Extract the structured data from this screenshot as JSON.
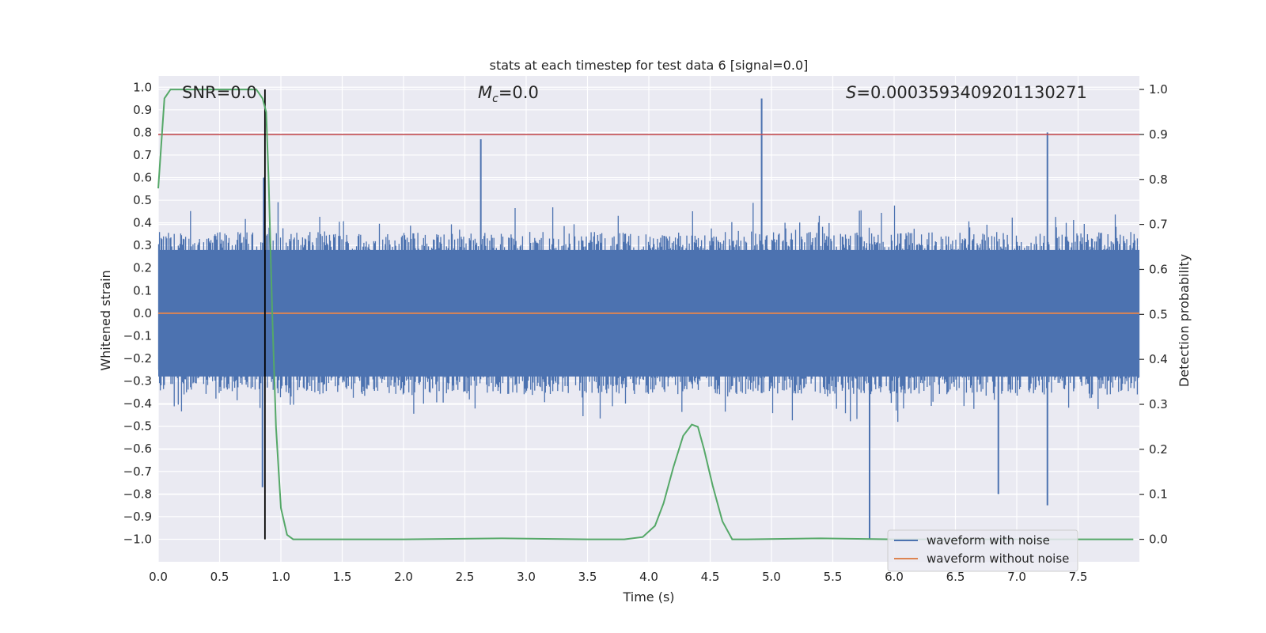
{
  "chart_data": {
    "type": "line",
    "title": "stats at each timestep for test data 6 [signal=0.0]",
    "xlabel": "Time (s)",
    "ylabel": "Whitened strain",
    "ylabel_right": "Detection probability",
    "xlim": [
      0.0,
      8.0
    ],
    "ylim": [
      -1.1,
      1.05
    ],
    "ylim_right": [
      -0.05,
      1.03
    ],
    "grid": true,
    "legend_position": "lower-right",
    "x_ticks": [
      "0.0",
      "0.5",
      "1.0",
      "1.5",
      "2.0",
      "2.5",
      "3.0",
      "3.5",
      "4.0",
      "4.5",
      "5.0",
      "5.5",
      "6.0",
      "6.5",
      "7.0",
      "7.5"
    ],
    "y_ticks": [
      "1.0",
      "0.9",
      "0.8",
      "0.7",
      "0.6",
      "0.5",
      "0.4",
      "0.3",
      "0.2",
      "0.1",
      "0.0",
      "-0.1",
      "-0.2",
      "-0.3",
      "-0.4",
      "-0.5",
      "-0.6",
      "-0.7",
      "-0.8",
      "-0.9",
      "-1.0"
    ],
    "y_right_ticks": [
      "1.0",
      "0.9",
      "0.8",
      "0.7",
      "0.6",
      "0.5",
      "0.4",
      "0.3",
      "0.2",
      "0.1",
      "0.0"
    ],
    "annotations": {
      "snr": "SNR=0.0",
      "mc_symbol": "M",
      "mc_sub": "c",
      "mc_value": "=0.0",
      "s_symbol": "S",
      "s_value": "=0.0003593409201130271"
    },
    "threshold": 0.9,
    "marker_x": 0.87,
    "series": [
      {
        "name": "waveform with noise",
        "color": "#4c72b0",
        "axis": "left",
        "envelope_typical": [
          -0.45,
          0.45
        ],
        "peaks": [
          [
            0.85,
            -0.77
          ],
          [
            0.86,
            0.6
          ],
          [
            2.63,
            0.77
          ],
          [
            4.92,
            0.95
          ],
          [
            5.8,
            -1.0
          ],
          [
            6.85,
            -0.8
          ],
          [
            7.25,
            0.8
          ],
          [
            7.25,
            -0.85
          ]
        ]
      },
      {
        "name": "waveform without noise",
        "color": "#dd8452",
        "axis": "left",
        "values_constant": 0.0
      },
      {
        "name": "",
        "color": "#55a868",
        "axis": "right",
        "x": [
          0.0,
          0.05,
          0.1,
          0.2,
          0.5,
          0.8,
          0.85,
          0.88,
          0.9,
          0.93,
          0.96,
          1.0,
          1.05,
          1.1,
          1.2,
          2.0,
          2.8,
          3.5,
          3.8,
          3.95,
          4.05,
          4.12,
          4.2,
          4.28,
          4.35,
          4.4,
          4.45,
          4.52,
          4.6,
          4.68,
          4.8,
          5.4,
          6.0,
          7.0,
          7.95
        ],
        "values": [
          0.78,
          0.98,
          1.0,
          1.0,
          1.0,
          1.0,
          0.98,
          0.95,
          0.8,
          0.5,
          0.25,
          0.07,
          0.01,
          0.0,
          0.0,
          0.0,
          0.002,
          0.0,
          0.0,
          0.005,
          0.03,
          0.08,
          0.16,
          0.23,
          0.255,
          0.25,
          0.2,
          0.12,
          0.04,
          0.0,
          0.0,
          0.002,
          0.0,
          0.0,
          0.0
        ]
      }
    ]
  }
}
